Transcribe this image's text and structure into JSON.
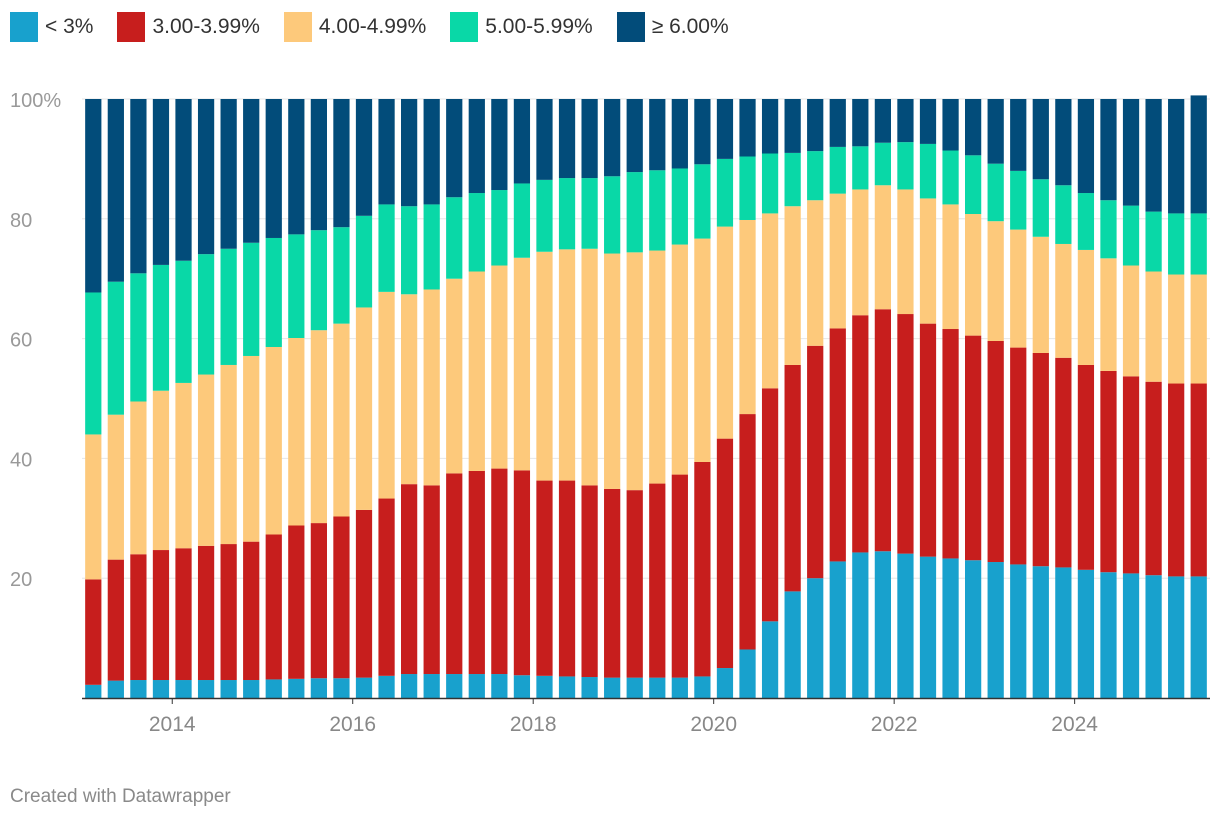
{
  "colors": {
    "lt3": "#18a1cd",
    "r3": "#c71e1d",
    "r4": "#fdc97b",
    "r5": "#09d8a7",
    "ge6": "#024c7a",
    "axis_text": "#999999",
    "grid": "#e6e6e6",
    "baseline": "#333333"
  },
  "chart_data": {
    "type": "bar",
    "stacked": true,
    "title": "",
    "xlabel": "",
    "ylabel": "",
    "ylim": [
      0,
      100
    ],
    "y_ticks": [
      "100%",
      "80",
      "60",
      "40",
      "20"
    ],
    "y_tick_values": [
      100,
      80,
      60,
      40,
      20
    ],
    "x_ticks": [
      "2014",
      "2016",
      "2018",
      "2020",
      "2022",
      "2024"
    ],
    "x_tick_values": [
      2014,
      2016,
      2018,
      2020,
      2022,
      2024
    ],
    "x_start": 2013.0,
    "x_step": 0.25,
    "x_domain": [
      2013.0,
      2025.5
    ],
    "legend_position": "top-left",
    "series": [
      {
        "name": "< 3%",
        "color_key": "lt3",
        "values": [
          2.2,
          2.9,
          3.0,
          3.0,
          3.0,
          3.0,
          3.0,
          3.0,
          3.1,
          3.2,
          3.3,
          3.3,
          3.4,
          3.7,
          4.0,
          4.0,
          4.0,
          4.0,
          4.0,
          3.8,
          3.7,
          3.6,
          3.5,
          3.4,
          3.4,
          3.4,
          3.4,
          3.6,
          5.0,
          8.1,
          12.8,
          17.8,
          20.0,
          22.8,
          24.3,
          24.5,
          24.1,
          23.6,
          23.3,
          23.0,
          22.7,
          22.3,
          22.0,
          21.8,
          21.4,
          21.0,
          20.8,
          20.5,
          20.3,
          20.3
        ]
      },
      {
        "name": "3.00-3.99%",
        "color_key": "r3",
        "values": [
          17.6,
          20.2,
          21.0,
          21.7,
          22.0,
          22.4,
          22.7,
          23.1,
          24.2,
          25.6,
          25.9,
          27.0,
          28.0,
          29.6,
          31.7,
          31.5,
          33.5,
          33.9,
          34.3,
          34.2,
          32.6,
          32.7,
          32.0,
          31.5,
          31.3,
          32.4,
          33.9,
          35.8,
          38.3,
          39.3,
          38.9,
          37.8,
          38.8,
          38.9,
          39.6,
          40.4,
          40.0,
          38.9,
          38.3,
          37.5,
          36.9,
          36.2,
          35.6,
          35.0,
          34.2,
          33.6,
          32.9,
          32.3,
          32.2,
          32.2
        ]
      },
      {
        "name": "4.00-4.99%",
        "color_key": "r4",
        "values": [
          24.2,
          24.2,
          25.5,
          26.6,
          27.6,
          28.6,
          29.9,
          31.0,
          31.3,
          31.3,
          32.2,
          32.2,
          33.8,
          34.5,
          31.7,
          32.7,
          32.5,
          33.3,
          33.9,
          35.5,
          38.2,
          38.6,
          39.5,
          39.3,
          39.7,
          38.9,
          38.4,
          37.3,
          35.4,
          32.4,
          29.2,
          26.5,
          24.3,
          22.5,
          21.0,
          20.7,
          20.8,
          20.9,
          20.8,
          20.3,
          20.0,
          19.7,
          19.4,
          19.0,
          19.2,
          18.8,
          18.5,
          18.4,
          18.2,
          18.2
        ]
      },
      {
        "name": "5.00-5.99%",
        "color_key": "r5",
        "values": [
          23.7,
          22.2,
          21.4,
          21.0,
          20.4,
          20.1,
          19.4,
          18.9,
          18.2,
          17.3,
          16.7,
          16.1,
          15.3,
          14.6,
          14.7,
          14.2,
          13.6,
          13.1,
          12.6,
          12.4,
          12.0,
          11.9,
          11.8,
          12.9,
          13.4,
          13.4,
          12.7,
          12.4,
          11.3,
          10.6,
          10.0,
          8.9,
          8.2,
          7.8,
          7.2,
          7.1,
          7.9,
          9.1,
          9.0,
          9.8,
          9.6,
          9.8,
          9.6,
          9.8,
          9.5,
          9.7,
          10.0,
          10.0,
          10.2,
          10.2
        ]
      },
      {
        "name": "≥ 6.00%",
        "color_key": "ge6",
        "values": [
          32.3,
          30.5,
          29.1,
          27.7,
          27.0,
          25.9,
          25.0,
          24.0,
          23.2,
          22.6,
          21.9,
          21.4,
          19.5,
          17.6,
          17.9,
          17.6,
          16.4,
          15.7,
          15.2,
          14.1,
          13.5,
          13.2,
          13.2,
          12.9,
          12.2,
          11.9,
          11.6,
          10.9,
          10.0,
          9.6,
          9.1,
          9.0,
          8.7,
          8.0,
          7.9,
          7.3,
          7.2,
          7.5,
          8.6,
          9.4,
          10.8,
          12.0,
          13.4,
          14.4,
          15.7,
          16.9,
          17.8,
          18.8,
          19.1,
          19.7
        ]
      }
    ]
  },
  "credit": "Created with Datawrapper"
}
